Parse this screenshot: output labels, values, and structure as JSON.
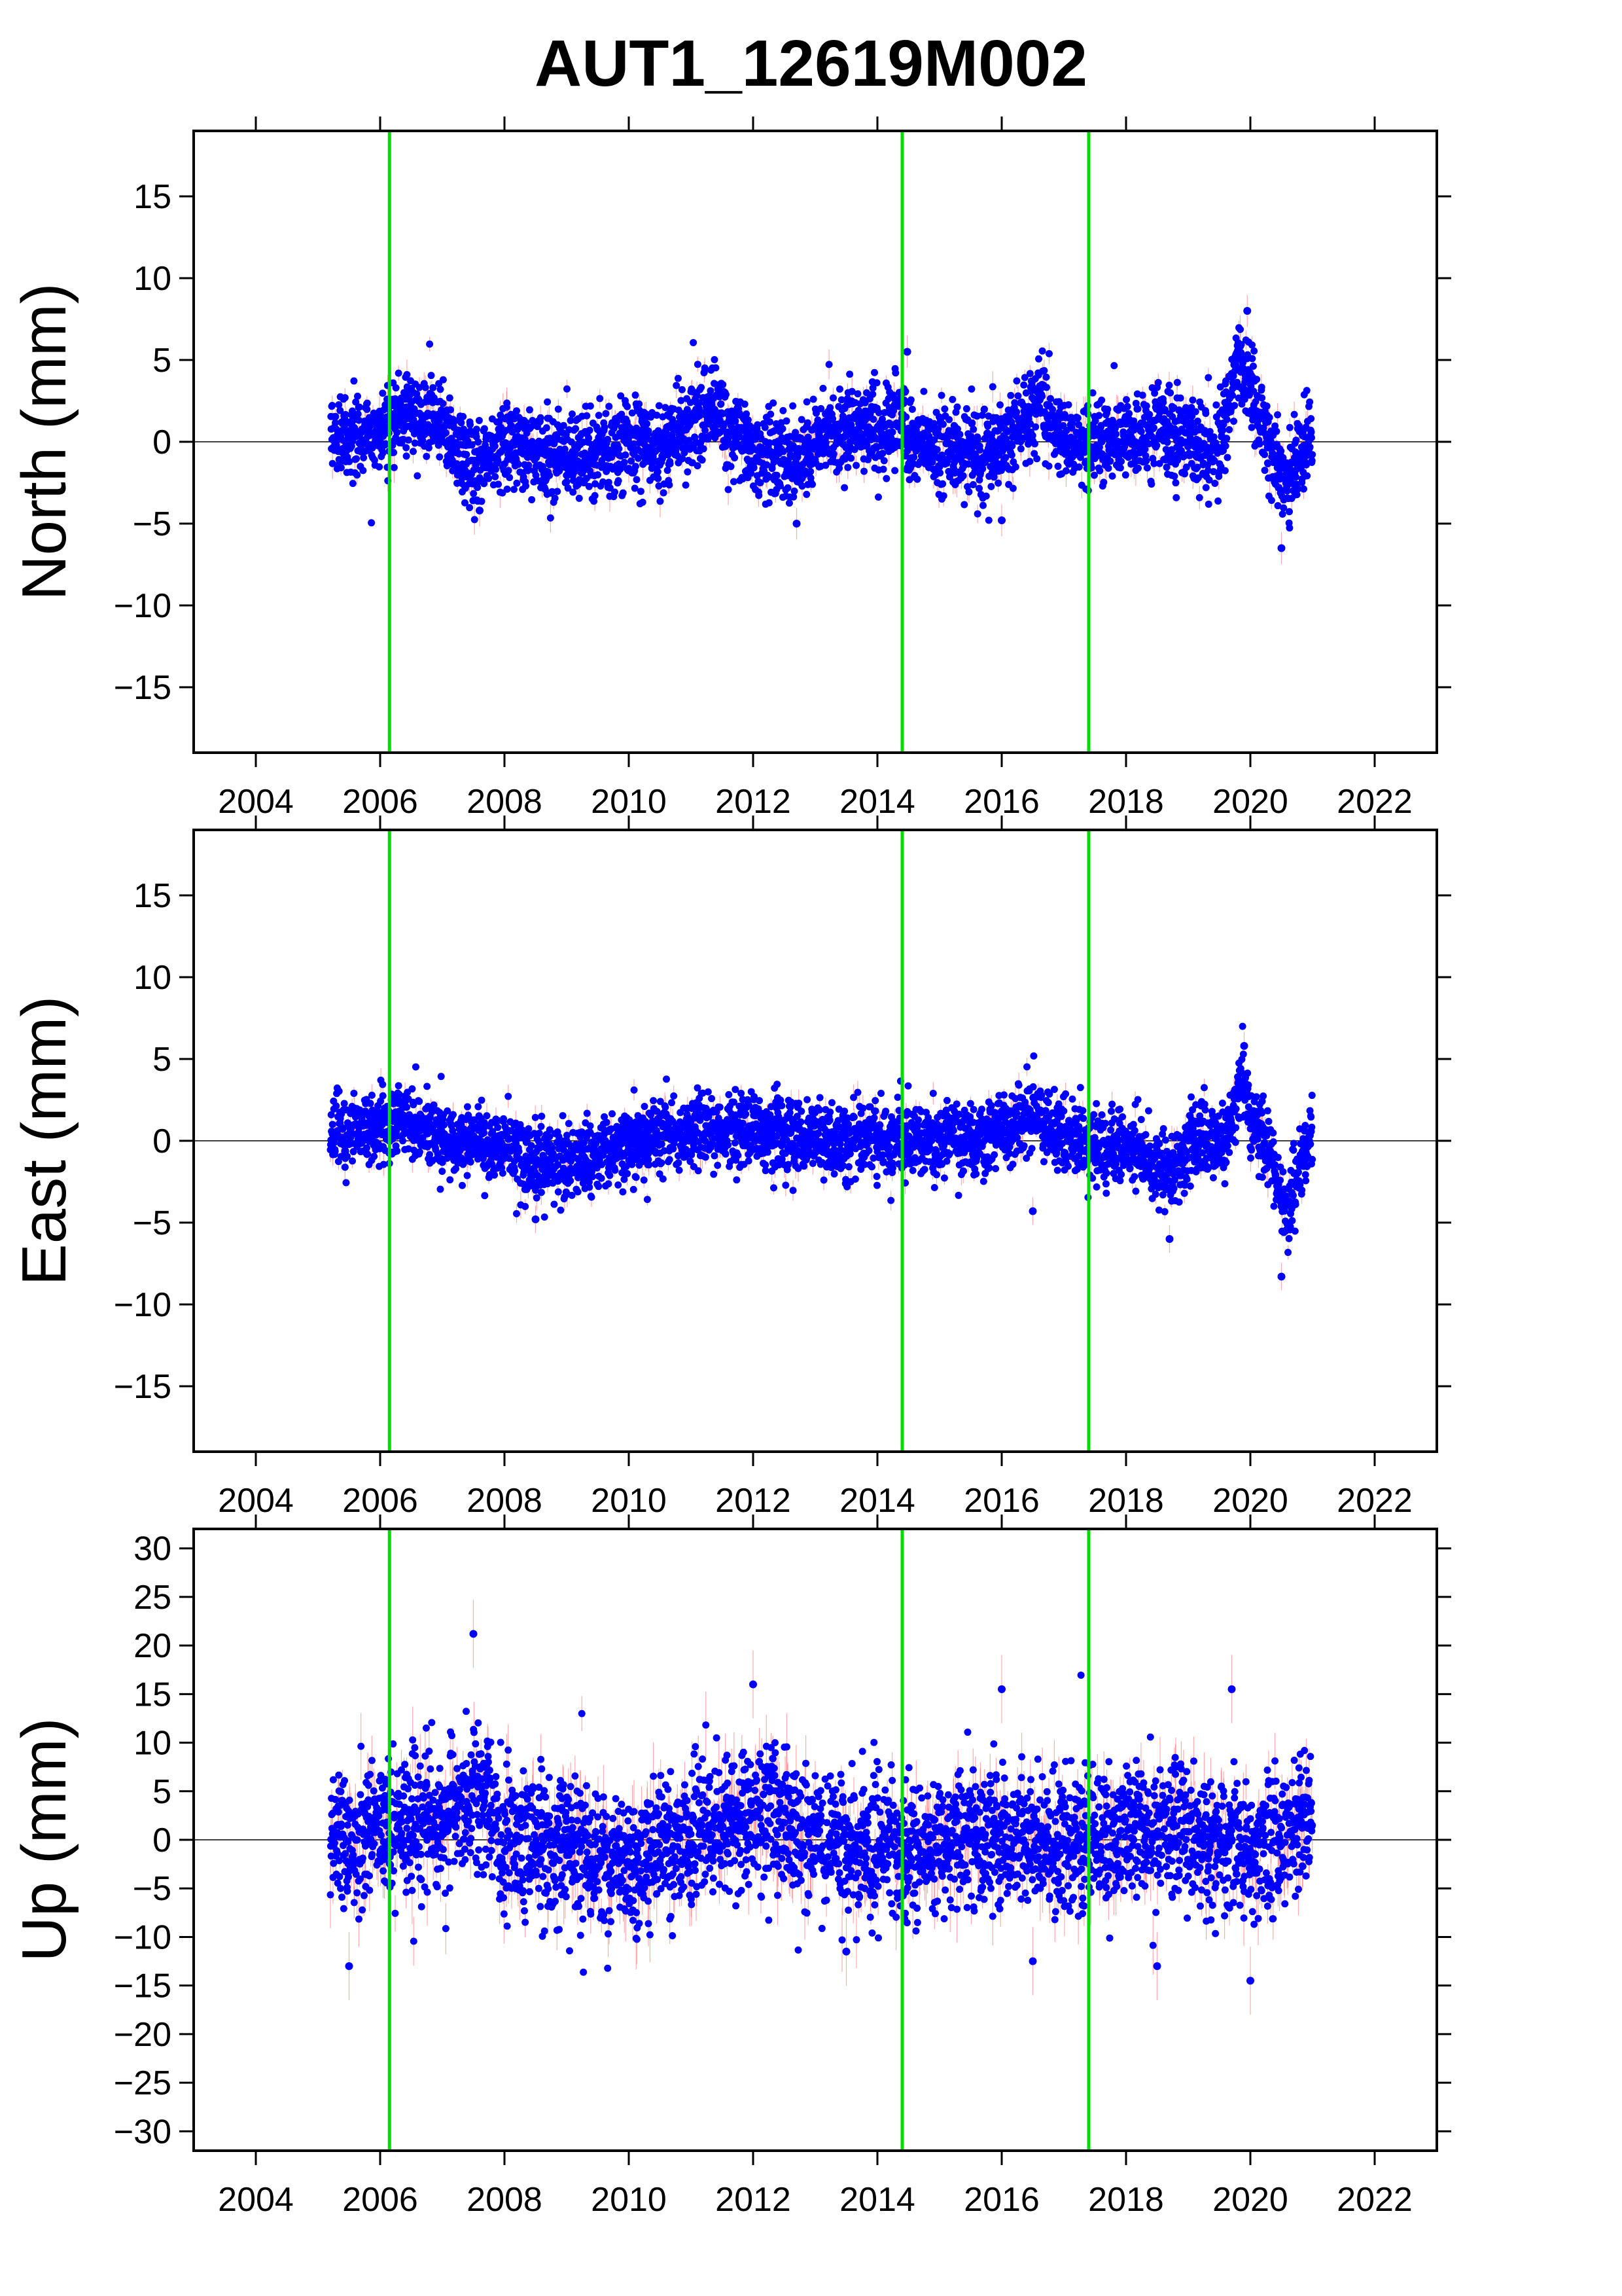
{
  "title": "AUT1_12619M002",
  "colors": {
    "points": "#0000ff",
    "error_bars": "#ff6666",
    "breaks": "#00dd00",
    "zero_line": "#000000",
    "frame": "#000000"
  },
  "chart_data": [
    {
      "type": "scatter",
      "ylabel": "North (mm)",
      "xlim": [
        2003,
        2023
      ],
      "ylim": [
        -19,
        19
      ],
      "x_ticks": [
        2004,
        2006,
        2008,
        2010,
        2012,
        2014,
        2016,
        2018,
        2020,
        2022
      ],
      "y_ticks": [
        -15,
        -10,
        -5,
        0,
        5,
        10,
        15
      ],
      "x_tick_labels": [
        "2004",
        "2006",
        "2008",
        "2010",
        "2012",
        "2014",
        "2016",
        "2018",
        "2020",
        "2022"
      ],
      "y_tick_labels": [
        "−15",
        "−10",
        "−5",
        "0",
        "5",
        "10",
        "15"
      ],
      "breaks": [
        2006.15,
        2014.4,
        2017.4
      ],
      "x_range": [
        2005.2,
        2021.0
      ],
      "trend": [
        [
          2005.2,
          0.5
        ],
        [
          2006.0,
          0.5
        ],
        [
          2006.3,
          2.0
        ],
        [
          2007.0,
          1.2
        ],
        [
          2007.5,
          -1.5
        ],
        [
          2008.0,
          0.0
        ],
        [
          2009.0,
          -0.8
        ],
        [
          2010.0,
          -0.2
        ],
        [
          2010.5,
          -0.5
        ],
        [
          2011.3,
          2.0
        ],
        [
          2012.0,
          -0.5
        ],
        [
          2012.7,
          -1.5
        ],
        [
          2013.0,
          0.5
        ],
        [
          2014.0,
          0.5
        ],
        [
          2014.4,
          2.0
        ],
        [
          2014.5,
          0.0
        ],
        [
          2015.0,
          -0.5
        ],
        [
          2016.0,
          -0.5
        ],
        [
          2016.6,
          2.5
        ],
        [
          2017.0,
          0.0
        ],
        [
          2018.0,
          0.3
        ],
        [
          2018.5,
          1.0
        ],
        [
          2019.0,
          0.0
        ],
        [
          2019.5,
          -0.5
        ],
        [
          2019.8,
          5.0
        ],
        [
          2020.0,
          3.5
        ],
        [
          2020.4,
          -1.0
        ],
        [
          2020.6,
          -2.5
        ],
        [
          2020.9,
          0.5
        ],
        [
          2021.0,
          0.5
        ]
      ],
      "scatter": 1.3,
      "error_bar": 0.7,
      "outliers": [
        [
          2014.48,
          5.5
        ],
        [
          2019.95,
          8.0
        ],
        [
          2020.5,
          -6.5
        ],
        [
          2016.0,
          -4.8
        ],
        [
          2012.7,
          -5.0
        ],
        [
          2007.6,
          -4.2
        ]
      ]
    },
    {
      "type": "scatter",
      "ylabel": "East (mm)",
      "xlim": [
        2003,
        2023
      ],
      "ylim": [
        -19,
        19
      ],
      "x_ticks": [
        2004,
        2006,
        2008,
        2010,
        2012,
        2014,
        2016,
        2018,
        2020,
        2022
      ],
      "y_ticks": [
        -15,
        -10,
        -5,
        0,
        5,
        10,
        15
      ],
      "x_tick_labels": [
        "2004",
        "2006",
        "2008",
        "2010",
        "2012",
        "2014",
        "2016",
        "2018",
        "2020",
        "2022"
      ],
      "y_tick_labels": [
        "−15",
        "−10",
        "−5",
        "0",
        "5",
        "10",
        "15"
      ],
      "breaks": [
        2006.15,
        2014.4,
        2017.4
      ],
      "x_range": [
        2005.2,
        2021.0
      ],
      "trend": [
        [
          2005.2,
          0.5
        ],
        [
          2006.0,
          0.8
        ],
        [
          2006.3,
          1.5
        ],
        [
          2007.0,
          0.0
        ],
        [
          2008.0,
          -0.5
        ],
        [
          2008.5,
          -1.5
        ],
        [
          2009.5,
          -0.8
        ],
        [
          2010.5,
          0.5
        ],
        [
          2011.5,
          0.8
        ],
        [
          2012.5,
          0.3
        ],
        [
          2013.5,
          0.0
        ],
        [
          2014.5,
          0.2
        ],
        [
          2015.5,
          0.0
        ],
        [
          2016.5,
          1.5
        ],
        [
          2017.0,
          0.0
        ],
        [
          2018.0,
          -0.5
        ],
        [
          2018.7,
          -2.0
        ],
        [
          2019.0,
          -0.3
        ],
        [
          2019.6,
          0.0
        ],
        [
          2019.85,
          3.5
        ],
        [
          2020.0,
          1.5
        ],
        [
          2020.3,
          -0.5
        ],
        [
          2020.6,
          -4.5
        ],
        [
          2020.8,
          -1.5
        ],
        [
          2021.0,
          0.5
        ]
      ],
      "scatter": 1.1,
      "error_bar": 0.6,
      "outliers": [
        [
          2019.9,
          5.8
        ],
        [
          2020.5,
          -8.3
        ],
        [
          2018.7,
          -6.0
        ],
        [
          2008.5,
          -4.8
        ],
        [
          2016.5,
          -4.3
        ]
      ]
    },
    {
      "type": "scatter",
      "ylabel": "Up (mm)",
      "xlim": [
        2003,
        2023
      ],
      "ylim": [
        -32,
        32
      ],
      "x_ticks": [
        2004,
        2006,
        2008,
        2010,
        2012,
        2014,
        2016,
        2018,
        2020,
        2022
      ],
      "y_ticks": [
        -30,
        -25,
        -20,
        -15,
        -10,
        -5,
        0,
        5,
        10,
        15,
        20,
        25,
        30
      ],
      "x_tick_labels": [
        "2004",
        "2006",
        "2008",
        "2010",
        "2012",
        "2014",
        "2016",
        "2018",
        "2020",
        "2022"
      ],
      "y_tick_labels": [
        "−30",
        "−25",
        "−20",
        "−15",
        "−10",
        "−5",
        "0",
        "5",
        "10",
        "15",
        "20",
        "25",
        "30"
      ],
      "breaks": [
        2006.15,
        2014.4,
        2017.4
      ],
      "x_range": [
        2005.2,
        2021.0
      ],
      "trend": [
        [
          2005.2,
          0.0
        ],
        [
          2006.0,
          1.0
        ],
        [
          2007.0,
          2.0
        ],
        [
          2007.5,
          5.0
        ],
        [
          2008.0,
          0.0
        ],
        [
          2009.0,
          -1.0
        ],
        [
          2010.0,
          -2.5
        ],
        [
          2011.0,
          0.5
        ],
        [
          2012.0,
          2.5
        ],
        [
          2013.0,
          0.5
        ],
        [
          2014.0,
          -0.5
        ],
        [
          2015.0,
          -1.0
        ],
        [
          2016.0,
          0.5
        ],
        [
          2017.0,
          -0.5
        ],
        [
          2018.0,
          0.5
        ],
        [
          2019.0,
          1.0
        ],
        [
          2020.0,
          -1.0
        ],
        [
          2021.0,
          1.0
        ]
      ],
      "scatter": 3.5,
      "error_bar": 2.5,
      "outliers": [
        [
          2007.5,
          21.2
        ],
        [
          2012.0,
          16.0
        ],
        [
          2019.7,
          15.5
        ],
        [
          2016.0,
          15.5
        ],
        [
          2005.5,
          -13.0
        ],
        [
          2020.0,
          -14.5
        ],
        [
          2016.5,
          -12.5
        ],
        [
          2018.5,
          -13.0
        ],
        [
          2013.5,
          -11.5
        ]
      ]
    }
  ]
}
